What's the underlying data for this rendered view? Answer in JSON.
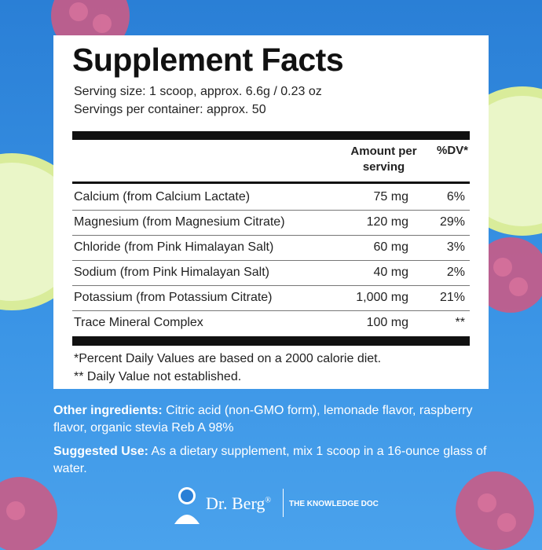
{
  "panel": {
    "title": "Supplement Facts",
    "serving_size": "Serving size: 1 scoop, approx. 6.6g / 0.23 oz",
    "servings_per_container": "Servings per container: approx. 50"
  },
  "table": {
    "columns": [
      "Amount per serving",
      "%DV*"
    ],
    "rows": [
      [
        "Calcium (from Calcium Lactate)",
        "75 mg",
        "6%"
      ],
      [
        "Magnesium (from Magnesium Citrate)",
        "120 mg",
        "29%"
      ],
      [
        "Chloride (from Pink Himalayan Salt)",
        "60 mg",
        "3%"
      ],
      [
        "Sodium (from Pink Himalayan Salt)",
        "40 mg",
        "2%"
      ],
      [
        "Potassium (from Potassium Citrate)",
        "1,000 mg",
        "21%"
      ],
      [
        "Trace Mineral Complex",
        "100 mg",
        "**"
      ]
    ]
  },
  "footnotes": [
    "*Percent Daily Values are based on a 2000 calorie diet.",
    "** Daily Value not established."
  ],
  "ingredients": {
    "label": "Other ingredients:",
    "text": "Citric acid (non-GMO form), lemonade flavor, raspberry flavor, organic stevia Reb A 98%"
  },
  "suggested_use": {
    "label": "Suggested Use:",
    "text": "As a dietary supplement, mix 1 scoop in a 16-ounce glass of water."
  },
  "brand": {
    "name": "Dr. Berg",
    "registered": "®",
    "tagline": "THE KNOWLEDGE DOC"
  }
}
